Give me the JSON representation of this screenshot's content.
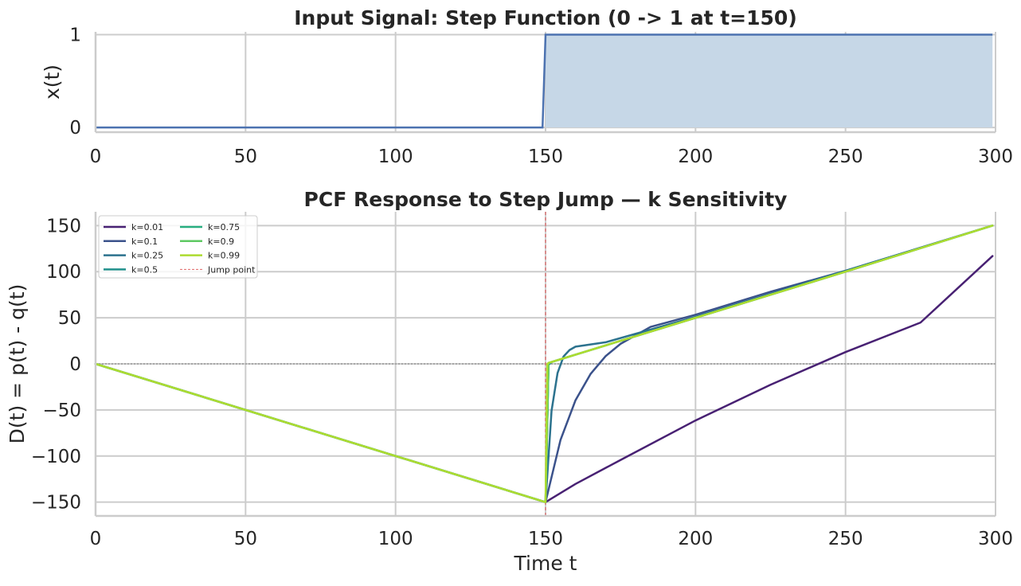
{
  "chart_data": [
    {
      "type": "area",
      "title": "Input Signal: Step Function (0 -> 1 at t=150)",
      "xlabel": "",
      "ylabel": "x(t)",
      "xlim": [
        0,
        300
      ],
      "ylim": [
        -0.05,
        1.03
      ],
      "xticks": [
        "0",
        "50",
        "100",
        "150",
        "200",
        "250",
        "300"
      ],
      "yticks": [
        "0",
        "1"
      ],
      "grid": true,
      "series": [
        {
          "x": [
            0,
            149,
            150,
            299
          ],
          "y": [
            0,
            0,
            1,
            1
          ],
          "color": "#4c72b0",
          "fill": "#c6d7e7",
          "fill_from": 150
        }
      ]
    },
    {
      "type": "line",
      "title": "PCF Response to Step Jump — k Sensitivity",
      "xlabel": "Time t",
      "ylabel": "D(t) = p(t) - q(t)",
      "xlim": [
        0,
        300
      ],
      "ylim": [
        -165,
        165
      ],
      "xticks": [
        "0",
        "50",
        "100",
        "150",
        "200",
        "250",
        "300"
      ],
      "yticks": [
        "150",
        "100",
        "50",
        "0",
        "−50",
        "−100",
        "−150"
      ],
      "grid": true,
      "legend_position": "upper-left",
      "zero_line": {
        "y": 0,
        "color": "#808080"
      },
      "jump_line": {
        "x": 150,
        "label": "Jump point",
        "color": "#e06666"
      },
      "series": [
        {
          "name": "k=0.01",
          "k": 0.01,
          "color": "#482173",
          "points": [
            [
              0,
              0
            ],
            [
              150,
              -150
            ],
            [
              160,
              -130.3
            ],
            [
              175,
              -104.3
            ],
            [
              200,
              -61.4
            ],
            [
              225,
              -22.7
            ],
            [
              250,
              12.8
            ],
            [
              275,
              44.8
            ],
            [
              299,
              117
            ]
          ]
        },
        {
          "name": "k=0.1",
          "k": 0.1,
          "color": "#3b528b",
          "points": [
            [
              0,
              0
            ],
            [
              150,
              -150
            ],
            [
              155,
              -82.4
            ],
            [
              160,
              -39.4
            ],
            [
              165,
              -11
            ],
            [
              170,
              8.3
            ],
            [
              175,
              21.7
            ],
            [
              185,
              40.1
            ],
            [
              200,
              53.3
            ],
            [
              225,
              78.2
            ],
            [
              250,
              101
            ],
            [
              299,
              150
            ]
          ]
        },
        {
          "name": "k=0.25",
          "k": 0.25,
          "color": "#2c728e",
          "points": [
            [
              0,
              0
            ],
            [
              150,
              -150
            ],
            [
              152,
              -51
            ],
            [
              154,
              -10
            ],
            [
              156,
              8
            ],
            [
              158,
              15
            ],
            [
              160,
              18.7
            ],
            [
              170,
              23.4
            ],
            [
              200,
              51
            ],
            [
              250,
              101
            ],
            [
              299,
              150
            ]
          ]
        },
        {
          "name": "k=0.5",
          "k": 0.5,
          "color": "#21918c",
          "points": [
            [
              0,
              0
            ],
            [
              150,
              -150
            ],
            [
              151,
              -1
            ],
            [
              152,
              2
            ],
            [
              154,
              4
            ],
            [
              160,
              10
            ],
            [
              200,
              50
            ],
            [
              250,
              100
            ],
            [
              299,
              150
            ]
          ]
        },
        {
          "name": "k=0.75",
          "k": 0.75,
          "color": "#28ae80",
          "points": [
            [
              0,
              0
            ],
            [
              150,
              -150
            ],
            [
              151,
              1
            ],
            [
              152,
              2
            ],
            [
              160,
              10
            ],
            [
              200,
              50
            ],
            [
              250,
              100
            ],
            [
              299,
              150
            ]
          ]
        },
        {
          "name": "k=0.9",
          "k": 0.9,
          "color": "#5ec962",
          "points": [
            [
              0,
              0
            ],
            [
              150,
              -150
            ],
            [
              151,
              1
            ],
            [
              160,
              10
            ],
            [
              200,
              50
            ],
            [
              250,
              100
            ],
            [
              299,
              150
            ]
          ]
        },
        {
          "name": "k=0.99",
          "k": 0.99,
          "color": "#addc30",
          "points": [
            [
              0,
              0
            ],
            [
              150,
              -150
            ],
            [
              150.6,
              0
            ],
            [
              151,
              1
            ],
            [
              200,
              50
            ],
            [
              250,
              100
            ],
            [
              299,
              150
            ]
          ]
        }
      ]
    }
  ]
}
